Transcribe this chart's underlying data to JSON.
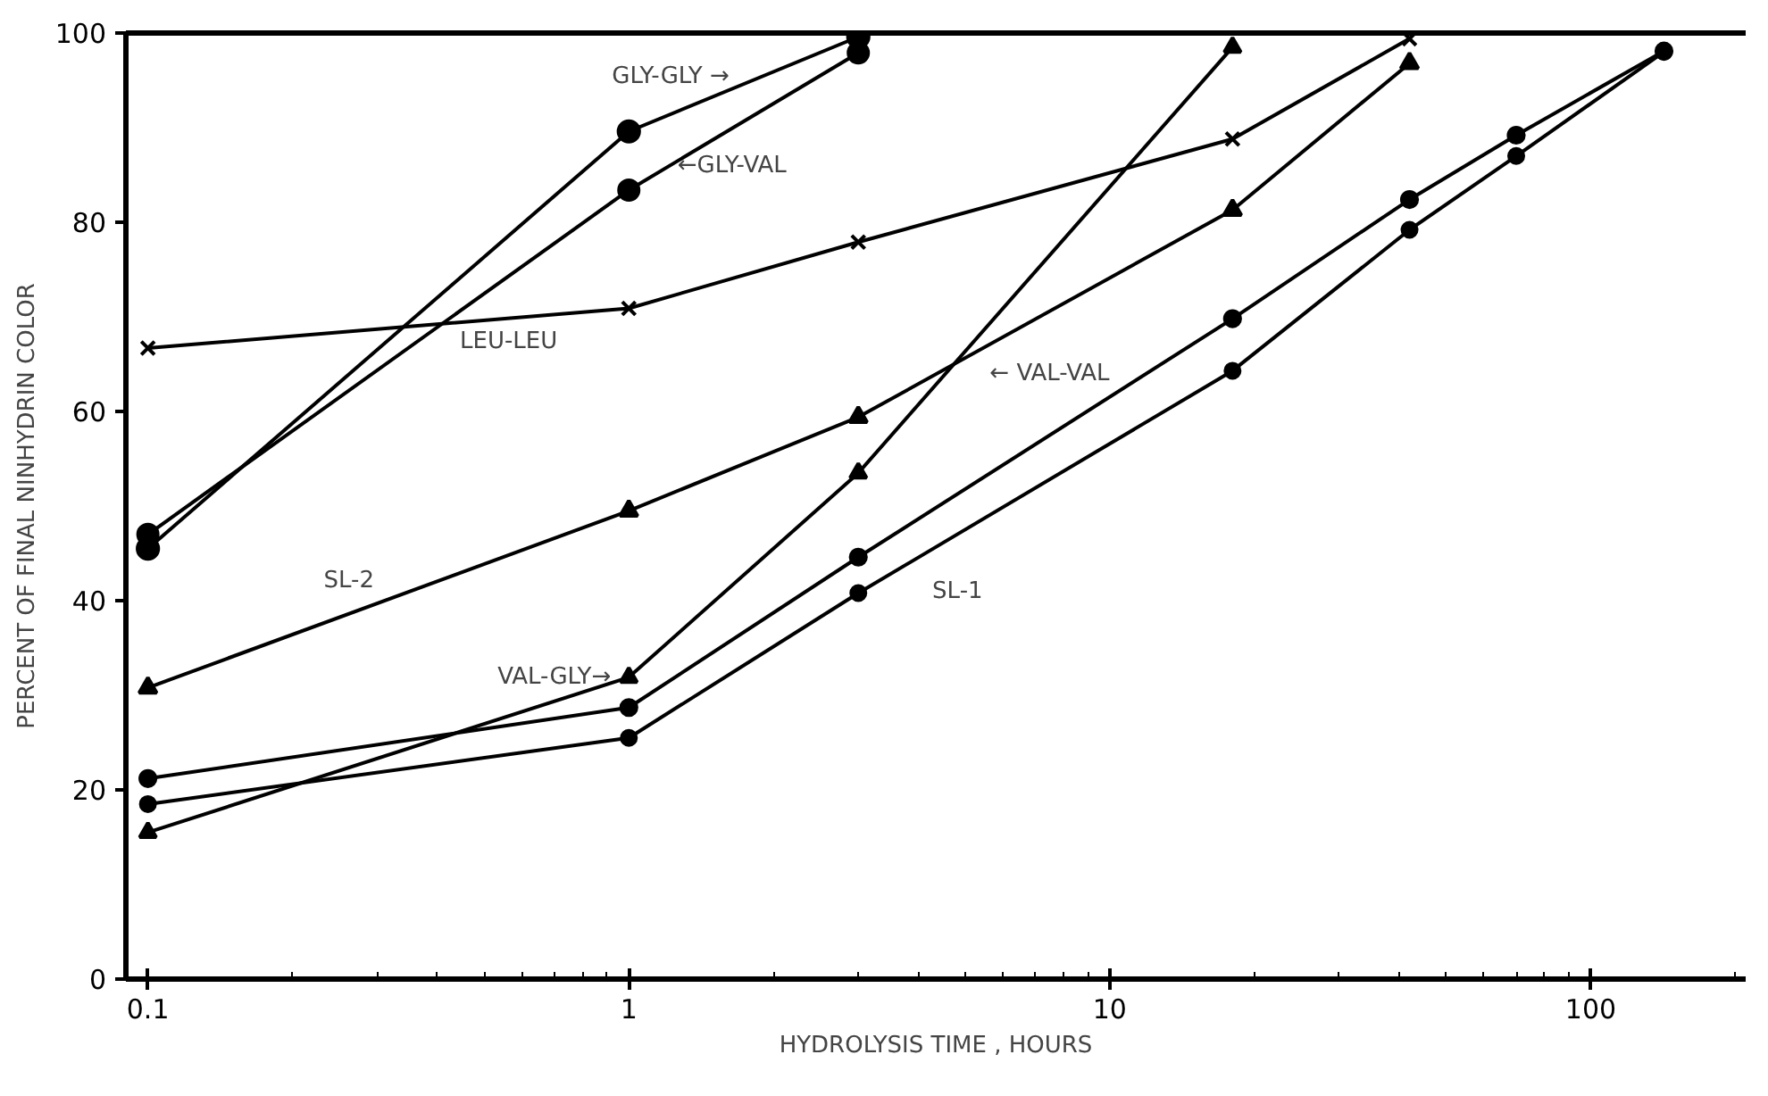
{
  "chart_data": {
    "type": "line",
    "xlabel": "HYDROLYSIS TIME , HOURS",
    "ylabel": "PERCENT OF FINAL NINHYDRIN COLOR",
    "log": "x",
    "xlim": [
      0.09,
      210
    ],
    "ylim": [
      0,
      100
    ],
    "xticks": [
      {
        "value": 0.1,
        "label": "0.1"
      },
      1,
      10,
      100
    ],
    "yticks": [
      0,
      20,
      40,
      60,
      80,
      100
    ],
    "grid": false,
    "legend": false,
    "series": [
      {
        "name": "GLY-GLY →",
        "color": "#000000",
        "marker": "circle",
        "x": [
          0.1,
          1,
          3
        ],
        "values": [
          45.5,
          89.6,
          99.6
        ]
      },
      {
        "name": "←GLY-VAL",
        "color": "#000000",
        "marker": "circle",
        "x": [
          0.1,
          1,
          3
        ],
        "values": [
          47,
          83.4,
          97.9
        ]
      },
      {
        "name": "LEU-LEU",
        "color": "#000000",
        "marker": "cross",
        "x": [
          0.1,
          1,
          3,
          18,
          42
        ],
        "values": [
          66.7,
          70.9,
          77.9,
          88.8,
          99.4
        ]
      },
      {
        "name": "SL-2",
        "color": "#000000",
        "marker": "triangle",
        "x": [
          0.1,
          1,
          3,
          18,
          42
        ],
        "values": [
          30.8,
          49.5,
          59.4,
          81.3,
          96.8
        ]
      },
      {
        "name": "VAL-GLY→",
        "color": "#000000",
        "marker": "triangle",
        "x": [
          0.1,
          1,
          3,
          18
        ],
        "values": [
          15.5,
          31.9,
          53.5,
          98.5
        ]
      },
      {
        "name": "← VAL-VAL",
        "color": "#000000",
        "marker": "circle",
        "x": [
          0.1,
          1,
          3,
          18,
          42,
          70,
          142
        ],
        "values": [
          21.2,
          28.7,
          44.6,
          69.8,
          82.4,
          89.2,
          98.1
        ]
      },
      {
        "name": "SL-1",
        "color": "#000000",
        "marker": "circle",
        "x": [
          0.1,
          1,
          3,
          18,
          42,
          70,
          142
        ],
        "values": [
          18.5,
          25.5,
          40.8,
          64.3,
          79.2,
          87,
          98
        ]
      }
    ]
  }
}
